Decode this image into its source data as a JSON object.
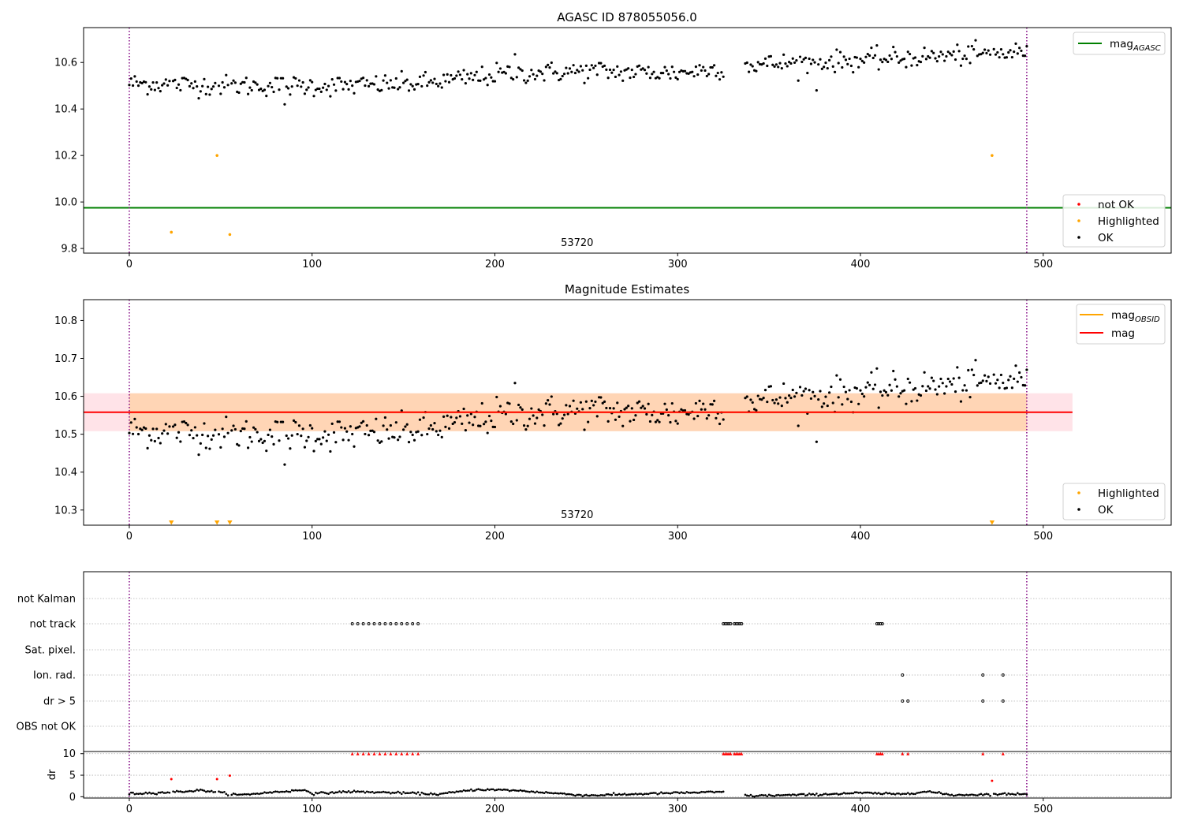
{
  "chart_data": [
    {
      "type": "scatter",
      "title": "AGASC ID 878055056.0",
      "xlim": [
        -25,
        570
      ],
      "ylim": [
        9.78,
        10.75
      ],
      "xticks": [
        0,
        100,
        200,
        300,
        400,
        500
      ],
      "yticks": [
        "9.8",
        "10.0",
        "10.2",
        "10.4",
        "10.6"
      ],
      "mag_agasc": 9.975,
      "obs_boundaries": [
        0,
        491
      ],
      "obs_label": "53720",
      "obs_label_x": 245,
      "series": [
        {
          "name": "not OK",
          "color": "#ff0000",
          "values": []
        },
        {
          "name": "Highlighted",
          "color": "#ffa500",
          "points": [
            [
              23,
              9.87
            ],
            [
              48,
              10.2
            ],
            [
              55,
              9.86
            ],
            [
              472,
              10.2
            ]
          ]
        },
        {
          "name": "OK",
          "color": "#000000",
          "n": 491,
          "start": 10.51,
          "end": 10.65,
          "segments": [
            [
              0,
              60,
              10.51,
              10.5
            ],
            [
              60,
              120,
              10.5,
              10.5
            ],
            [
              120,
              160,
              10.5,
              10.51
            ],
            [
              160,
              200,
              10.51,
              10.545
            ],
            [
              200,
              260,
              10.55,
              10.565
            ],
            [
              260,
              300,
              10.56,
              10.555
            ],
            [
              300,
              340,
              10.555,
              10.59
            ],
            [
              340,
              400,
              10.59,
              10.61
            ],
            [
              400,
              491,
              10.61,
              10.645
            ]
          ],
          "outliers": [
            [
              85,
              10.42
            ],
            [
              376,
              10.48
            ],
            [
              211,
              10.635
            ],
            [
              491,
              10.67
            ]
          ]
        }
      ],
      "legend_lines": [
        {
          "label": "mag",
          "sub": "AGASC",
          "color": "#008000"
        }
      ],
      "legend_points": [
        {
          "label": "not OK",
          "color": "#ff0000"
        },
        {
          "label": "Highlighted",
          "color": "#ffa500"
        },
        {
          "label": "OK",
          "color": "#000000"
        }
      ]
    },
    {
      "type": "scatter",
      "title": "Magnitude Estimates",
      "xlim": [
        -25,
        570
      ],
      "ylim": [
        10.26,
        10.855
      ],
      "xticks": [
        0,
        100,
        200,
        300,
        400,
        500
      ],
      "yticks": [
        "10.3",
        "10.4",
        "10.5",
        "10.6",
        "10.7",
        "10.8"
      ],
      "mag": 10.558,
      "mag_band": [
        10.508,
        10.608
      ],
      "mag_obsid": 10.558,
      "mag_obsid_band": [
        10.508,
        10.608
      ],
      "band_xmax": 516,
      "obs_boundaries": [
        0,
        491
      ],
      "obs_label": "53720",
      "obs_label_x": 245,
      "highlighted_markers_x": [
        23,
        48,
        55,
        472
      ],
      "legend_lines": [
        {
          "label": "mag",
          "sub": "OBSID",
          "color": "#ffa500"
        },
        {
          "label": "mag",
          "sub": "",
          "color": "#ff0000"
        }
      ],
      "legend_points": [
        {
          "label": "Highlighted",
          "color": "#ffa500"
        },
        {
          "label": "OK",
          "color": "#000000"
        }
      ]
    },
    {
      "type": "scatter",
      "title": "",
      "xlim": [
        -25,
        570
      ],
      "xticks": [
        0,
        100,
        200,
        300,
        400,
        500
      ],
      "flag_categories": [
        "not Kalman",
        "not track",
        "Sat. pixel.",
        "Ion. rad.",
        "dr > 5",
        "OBS not OK"
      ],
      "flags": {
        "not Kalman": [],
        "not track": [
          122,
          125,
          128,
          131,
          134,
          137,
          140,
          143,
          146,
          149,
          152,
          155,
          158,
          325,
          326,
          327,
          328,
          329,
          331,
          332,
          333,
          334,
          335,
          409,
          410,
          411,
          412
        ],
        "Sat. pixel.": [],
        "Ion. rad.": [
          423,
          467,
          478
        ],
        "dr > 5": [
          423,
          426,
          467,
          478
        ],
        "OBS not OK": []
      },
      "dr_ylabel": "dr",
      "dr_ylim": [
        -0.3,
        10.5
      ],
      "dr_yticks": [
        "0",
        "5",
        "10"
      ],
      "dr_clip": 10,
      "dr_clipped_x": [
        122,
        125,
        128,
        131,
        134,
        137,
        140,
        143,
        146,
        149,
        152,
        155,
        158,
        325,
        326,
        327,
        328,
        329,
        331,
        332,
        333,
        334,
        335,
        409,
        410,
        411,
        412,
        423,
        426,
        467,
        478
      ],
      "dr_red_points": [
        [
          23,
          4.1
        ],
        [
          48,
          4.1
        ],
        [
          55,
          4.9
        ],
        [
          472,
          3.7
        ]
      ],
      "dr_profile": [
        [
          0,
          0.7
        ],
        [
          20,
          1.0
        ],
        [
          40,
          1.5
        ],
        [
          60,
          0.4
        ],
        [
          80,
          1.1
        ],
        [
          97,
          1.6
        ],
        [
          100,
          0.7
        ],
        [
          120,
          1.2
        ],
        [
          140,
          1.0
        ],
        [
          170,
          0.6
        ],
        [
          190,
          1.7
        ],
        [
          210,
          1.5
        ],
        [
          250,
          0.3
        ],
        [
          300,
          0.9
        ],
        [
          325,
          1.1
        ],
        [
          340,
          0.2
        ],
        [
          375,
          0.5
        ],
        [
          400,
          0.9
        ],
        [
          420,
          0.6
        ],
        [
          437,
          1.2
        ],
        [
          450,
          0.4
        ],
        [
          491,
          0.7
        ]
      ],
      "dr_gaps": [
        [
          326,
          336
        ]
      ]
    }
  ]
}
